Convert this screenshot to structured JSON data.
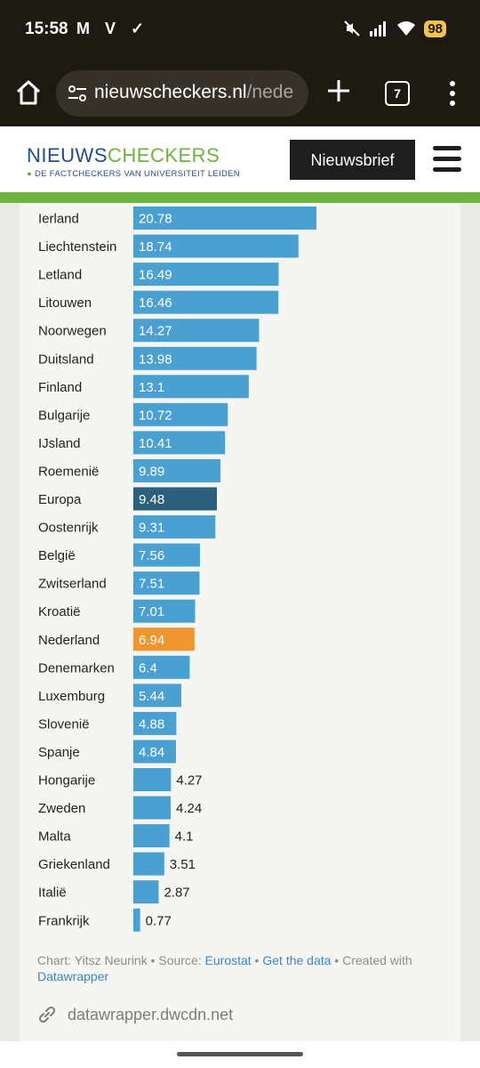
{
  "status_bar": {
    "time": "15:58",
    "app_icons": "M V ✓",
    "battery": "98"
  },
  "browser": {
    "url_domain": "nieuwscheckers.nl",
    "url_path": "/nede",
    "tab_count": "7"
  },
  "site": {
    "logo_part1": "NIEUWS",
    "logo_part2": "CHECKERS",
    "tagline": "DE FACTCHECKERS VAN UNIVERSITEIT LEIDEN",
    "newsletter_label": "Nieuwsbrief"
  },
  "chart_data": {
    "type": "bar",
    "orientation": "horizontal",
    "categories": [
      "Ierland",
      "Liechtenstein",
      "Letland",
      "Litouwen",
      "Noorwegen",
      "Duitsland",
      "Finland",
      "Bulgarije",
      "IJsland",
      "Roemenië",
      "Europa",
      "Oostenrijk",
      "België",
      "Zwitserland",
      "Kroatië",
      "Nederland",
      "Denemarken",
      "Luxemburg",
      "Slovenië",
      "Spanje",
      "Hongarije",
      "Zweden",
      "Malta",
      "Griekenland",
      "Italië",
      "Frankrijk"
    ],
    "values": [
      20.78,
      18.74,
      16.49,
      16.46,
      14.27,
      13.98,
      13.1,
      10.72,
      10.41,
      9.89,
      9.48,
      9.31,
      7.56,
      7.51,
      7.01,
      6.94,
      6.4,
      5.44,
      4.88,
      4.84,
      4.27,
      4.24,
      4.1,
      3.51,
      2.87,
      0.77
    ],
    "labels": [
      "20.78",
      "18.74",
      "16.49",
      "16.46",
      "14.27",
      "13.98",
      "13.1",
      "10.72",
      "10.41",
      "9.89",
      "9.48",
      "9.31",
      "7.56",
      "7.51",
      "7.01",
      "6.94",
      "6.4",
      "5.44",
      "4.88",
      "4.84",
      "4.27",
      "4.24",
      "4.1",
      "3.51",
      "2.87",
      "0.77"
    ],
    "colors": {
      "default": "#4aa0d0",
      "Europa": "#2c5f7c",
      "Nederland": "#ef9632"
    }
  },
  "footer": {
    "credit_prefix": "Chart: Yitsz Neurink • Source: ",
    "source_link": "Eurostat",
    "sep": " • ",
    "data_link": "Get the data",
    "created_with": " • Created with ",
    "tool_link": "Datawrapper",
    "embed_domain": "datawrapper.dwcdn.net"
  }
}
